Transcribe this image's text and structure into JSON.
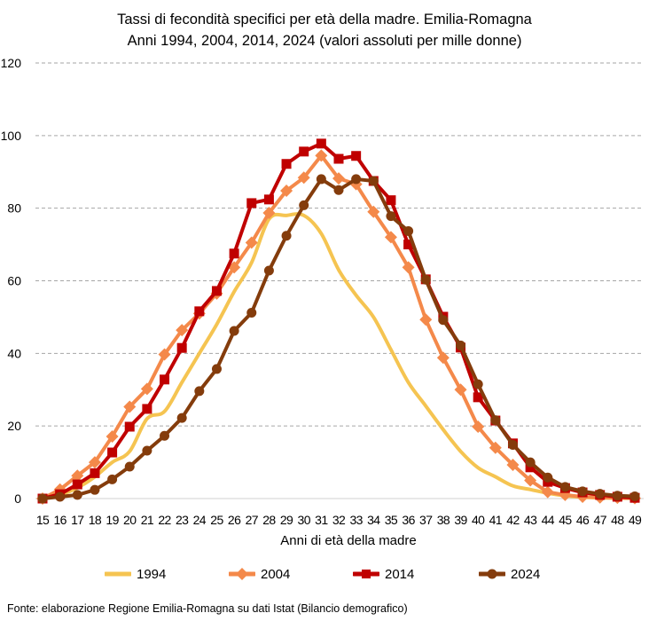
{
  "chart_data": {
    "type": "line",
    "title": [
      "Tassi di fecondità specifici per età della madre. Emilia-Romagna",
      "Anni 1994, 2004, 2014, 2024 (valori assoluti per mille donne)"
    ],
    "xlabel": "Anni di età della madre",
    "ylabel": "",
    "ylim": [
      0,
      120
    ],
    "yticks": [
      0,
      20,
      40,
      60,
      80,
      100,
      120
    ],
    "grid": true,
    "legend_placement": "bottom",
    "x": [
      15,
      16,
      17,
      18,
      19,
      20,
      21,
      22,
      23,
      24,
      25,
      26,
      27,
      28,
      29,
      30,
      31,
      32,
      33,
      34,
      35,
      36,
      37,
      38,
      39,
      40,
      41,
      42,
      43,
      44,
      45,
      46,
      47,
      48,
      49
    ],
    "series": [
      {
        "name": "1994",
        "color": "#F5C451",
        "marker": "none",
        "smooth": true,
        "values": [
          0,
          1,
          3,
          6,
          10,
          13,
          22,
          24,
          32,
          40,
          48,
          57,
          65,
          77,
          78,
          78,
          73,
          63,
          56,
          50,
          41,
          32,
          25.5,
          19,
          13,
          8.5,
          6,
          3.5,
          2.5,
          1.5,
          0.8,
          0.4,
          0.2,
          0.1,
          0.1
        ]
      },
      {
        "name": "2004",
        "color": "#F4894A",
        "marker": "diamond",
        "values": [
          0,
          2.5,
          6.3,
          10,
          17.1,
          25.3,
          30.2,
          39.7,
          46.4,
          51,
          56.5,
          63.7,
          70.5,
          78.7,
          84.8,
          88.4,
          94.5,
          88.2,
          86.6,
          79,
          72,
          63.7,
          49.3,
          38.8,
          30,
          19.8,
          14,
          9.3,
          5,
          1.8,
          1,
          0.5,
          0.3,
          0.2,
          0.1
        ]
      },
      {
        "name": "2014",
        "color": "#C00000",
        "marker": "square",
        "values": [
          0,
          1.2,
          3.9,
          7,
          12.7,
          19.8,
          24.7,
          32.8,
          41.5,
          51.6,
          57.2,
          67.5,
          81.4,
          82.4,
          92.2,
          95.6,
          97.8,
          93.6,
          94.4,
          87.5,
          82.2,
          70,
          60.4,
          50.1,
          41.6,
          27.9,
          21.5,
          15.2,
          8.6,
          4.6,
          2.9,
          1.7,
          1,
          0.5,
          0.2
        ]
      },
      {
        "name": "2024",
        "color": "#843C0C",
        "marker": "circle",
        "values": [
          0,
          0.5,
          1,
          2.4,
          5.3,
          8.8,
          13.2,
          17.3,
          22.2,
          29.6,
          35.7,
          46.2,
          51.2,
          62.8,
          72.4,
          80.8,
          88,
          85,
          88,
          87.5,
          77.8,
          73.7,
          60.3,
          49.2,
          42.2,
          31.5,
          21.6,
          14.8,
          10,
          5.8,
          3.2,
          2,
          1.3,
          0.8,
          0.6
        ]
      }
    ]
  },
  "source": "Fonte: elaborazione Regione Emilia-Romagna su dati Istat (Bilancio demografico)"
}
